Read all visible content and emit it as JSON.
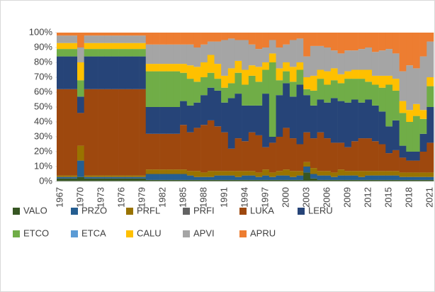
{
  "chart_data": {
    "type": "stacked_bar_100",
    "categories": [
      "1967",
      null,
      null,
      "1970",
      null,
      null,
      "1973",
      null,
      null,
      "1976",
      null,
      null,
      "1979",
      null,
      null,
      "1982",
      null,
      null,
      "1985",
      null,
      null,
      "1988",
      null,
      null,
      "1991",
      null,
      null,
      "1994",
      null,
      null,
      "1997",
      null,
      null,
      "2000",
      null,
      null,
      "2003",
      null,
      null,
      "2006",
      null,
      null,
      "2009",
      null,
      null,
      "2012",
      null,
      null,
      "2015",
      null,
      null,
      "2018",
      null,
      null,
      "2021"
    ],
    "ylim": [
      0,
      100
    ],
    "yticks": [
      {
        "value": 0,
        "label": "0%"
      },
      {
        "value": 10,
        "label": "10%"
      },
      {
        "value": 20,
        "label": "20%"
      },
      {
        "value": 30,
        "label": "30%"
      },
      {
        "value": 40,
        "label": "40%"
      },
      {
        "value": 50,
        "label": "50%"
      },
      {
        "value": 60,
        "label": "60%"
      },
      {
        "value": 70,
        "label": "70%"
      },
      {
        "value": 80,
        "label": "80%"
      },
      {
        "value": 90,
        "label": "90%"
      },
      {
        "value": 100,
        "label": "100%"
      }
    ],
    "legend": "bottom",
    "series": [
      {
        "name": "VALO",
        "color": "#375623",
        "values": [
          2,
          2,
          2,
          3,
          2,
          2,
          2,
          2,
          2,
          2,
          2,
          2,
          2,
          1,
          1,
          1,
          1,
          1,
          1,
          1,
          1,
          1,
          1,
          1,
          1,
          1,
          1,
          1,
          1,
          1,
          1,
          1,
          1,
          1,
          1,
          1,
          6,
          2,
          1,
          1,
          1,
          1,
          1,
          1,
          1,
          1,
          1,
          1,
          1,
          1,
          1,
          1,
          1,
          1,
          1
        ]
      },
      {
        "name": "PRZO",
        "color": "#255e91",
        "values": [
          1,
          1,
          1,
          11,
          1,
          1,
          1,
          1,
          1,
          1,
          1,
          1,
          1,
          4,
          4,
          4,
          4,
          4,
          4,
          3,
          2,
          2,
          2,
          3,
          3,
          3,
          2,
          3,
          3,
          2,
          3,
          2,
          3,
          3,
          2,
          3,
          4,
          3,
          3,
          3,
          2,
          3,
          3,
          3,
          2,
          3,
          3,
          3,
          3,
          3,
          2,
          2,
          2,
          2,
          2
        ]
      },
      {
        "name": "PRFL",
        "color": "#997300",
        "values": [
          1,
          1,
          1,
          10,
          1,
          1,
          1,
          1,
          1,
          1,
          1,
          1,
          1,
          3,
          3,
          3,
          3,
          3,
          3,
          3,
          4,
          3,
          4,
          3,
          3,
          3,
          4,
          3,
          3,
          3,
          4,
          3,
          3,
          4,
          4,
          3,
          3,
          4,
          3,
          3,
          3,
          4,
          3,
          3,
          4,
          3,
          3,
          3,
          3,
          3,
          3,
          3,
          3,
          3,
          3
        ]
      },
      {
        "name": "PRFI",
        "color": "#636363",
        "values": [
          0,
          0,
          0,
          0,
          0,
          0,
          0,
          0,
          0,
          0,
          0,
          0,
          0,
          0,
          0,
          0,
          0,
          0,
          0,
          0,
          0,
          0,
          0,
          0,
          0,
          0,
          0,
          0,
          0,
          0,
          0,
          0,
          0,
          0,
          0,
          0,
          0,
          0,
          0,
          0,
          0,
          0,
          0,
          0,
          0,
          0,
          0,
          0,
          0,
          0,
          0,
          0,
          0,
          0,
          0
        ]
      },
      {
        "name": "LUKA",
        "color": "#9e480e",
        "values": [
          58,
          58,
          58,
          22,
          58,
          58,
          58,
          58,
          58,
          58,
          58,
          58,
          58,
          24,
          24,
          24,
          24,
          24,
          30,
          26,
          29,
          32,
          34,
          30,
          26,
          15,
          22,
          20,
          26,
          25,
          15,
          20,
          23,
          28,
          22,
          18,
          20,
          20,
          26,
          22,
          20,
          18,
          16,
          20,
          22,
          22,
          20,
          18,
          12,
          14,
          10,
          8,
          8,
          14,
          20
        ]
      },
      {
        "name": "LERU",
        "color": "#264478",
        "values": [
          22,
          22,
          22,
          11,
          22,
          22,
          22,
          22,
          22,
          22,
          22,
          22,
          22,
          18,
          18,
          18,
          18,
          18,
          16,
          18,
          17,
          20,
          22,
          24,
          20,
          34,
          30,
          24,
          18,
          20,
          36,
          4,
          28,
          30,
          28,
          40,
          25,
          22,
          22,
          24,
          30,
          28,
          30,
          28,
          24,
          26,
          24,
          22,
          18,
          20,
          8,
          6,
          6,
          12,
          24
        ]
      },
      {
        "name": "ETCO",
        "color": "#70ad47",
        "values": [
          5,
          5,
          5,
          11,
          5,
          5,
          5,
          5,
          5,
          5,
          5,
          5,
          5,
          24,
          24,
          24,
          24,
          24,
          19,
          18,
          14,
          12,
          10,
          8,
          10,
          10,
          14,
          14,
          20,
          16,
          16,
          50,
          10,
          8,
          10,
          10,
          4,
          10,
          14,
          12,
          12,
          12,
          16,
          14,
          16,
          12,
          14,
          16,
          28,
          20,
          22,
          20,
          24,
          10,
          14
        ]
      },
      {
        "name": "ETCA",
        "color": "#5b9bd5",
        "values": [
          0,
          0,
          0,
          0,
          0,
          0,
          0,
          0,
          0,
          0,
          0,
          0,
          0,
          0,
          0,
          0,
          0,
          0,
          0,
          0,
          0,
          0,
          0,
          0,
          0,
          0,
          0,
          0,
          0,
          0,
          0,
          0,
          0,
          0,
          0,
          0,
          0,
          0,
          0,
          0,
          0,
          0,
          0,
          0,
          0,
          0,
          0,
          0,
          0,
          0,
          0,
          0,
          0,
          0,
          0
        ]
      },
      {
        "name": "CALU",
        "color": "#ffc000",
        "values": [
          4,
          4,
          4,
          12,
          4,
          4,
          4,
          4,
          4,
          4,
          4,
          4,
          4,
          5,
          5,
          5,
          5,
          5,
          6,
          9,
          10,
          10,
          12,
          10,
          8,
          10,
          8,
          10,
          7,
          10,
          5,
          6,
          8,
          6,
          10,
          5,
          8,
          10,
          6,
          9,
          8,
          6,
          5,
          6,
          6,
          8,
          6,
          8,
          6,
          8,
          8,
          8,
          8,
          6,
          6
        ]
      },
      {
        "name": "APVI",
        "color": "#a5a5a5",
        "values": [
          5,
          5,
          5,
          10,
          5,
          5,
          5,
          5,
          5,
          5,
          5,
          5,
          5,
          13,
          13,
          13,
          13,
          13,
          13,
          14,
          13,
          12,
          9,
          15,
          24,
          20,
          14,
          20,
          14,
          12,
          10,
          9,
          14,
          12,
          18,
          16,
          14,
          20,
          16,
          16,
          12,
          14,
          14,
          13,
          14,
          15,
          16,
          17,
          18,
          17,
          20,
          30,
          24,
          36,
          24
        ]
      },
      {
        "name": "APRU",
        "color": "#ed7d31",
        "values": [
          2,
          2,
          2,
          10,
          2,
          2,
          2,
          2,
          2,
          2,
          2,
          2,
          2,
          8,
          8,
          8,
          8,
          8,
          8,
          8,
          10,
          8,
          6,
          6,
          5,
          4,
          5,
          5,
          8,
          11,
          10,
          5,
          10,
          8,
          5,
          4,
          16,
          9,
          9,
          10,
          12,
          14,
          12,
          12,
          11,
          10,
          13,
          12,
          11,
          14,
          26,
          22,
          24,
          16,
          6
        ]
      }
    ]
  }
}
